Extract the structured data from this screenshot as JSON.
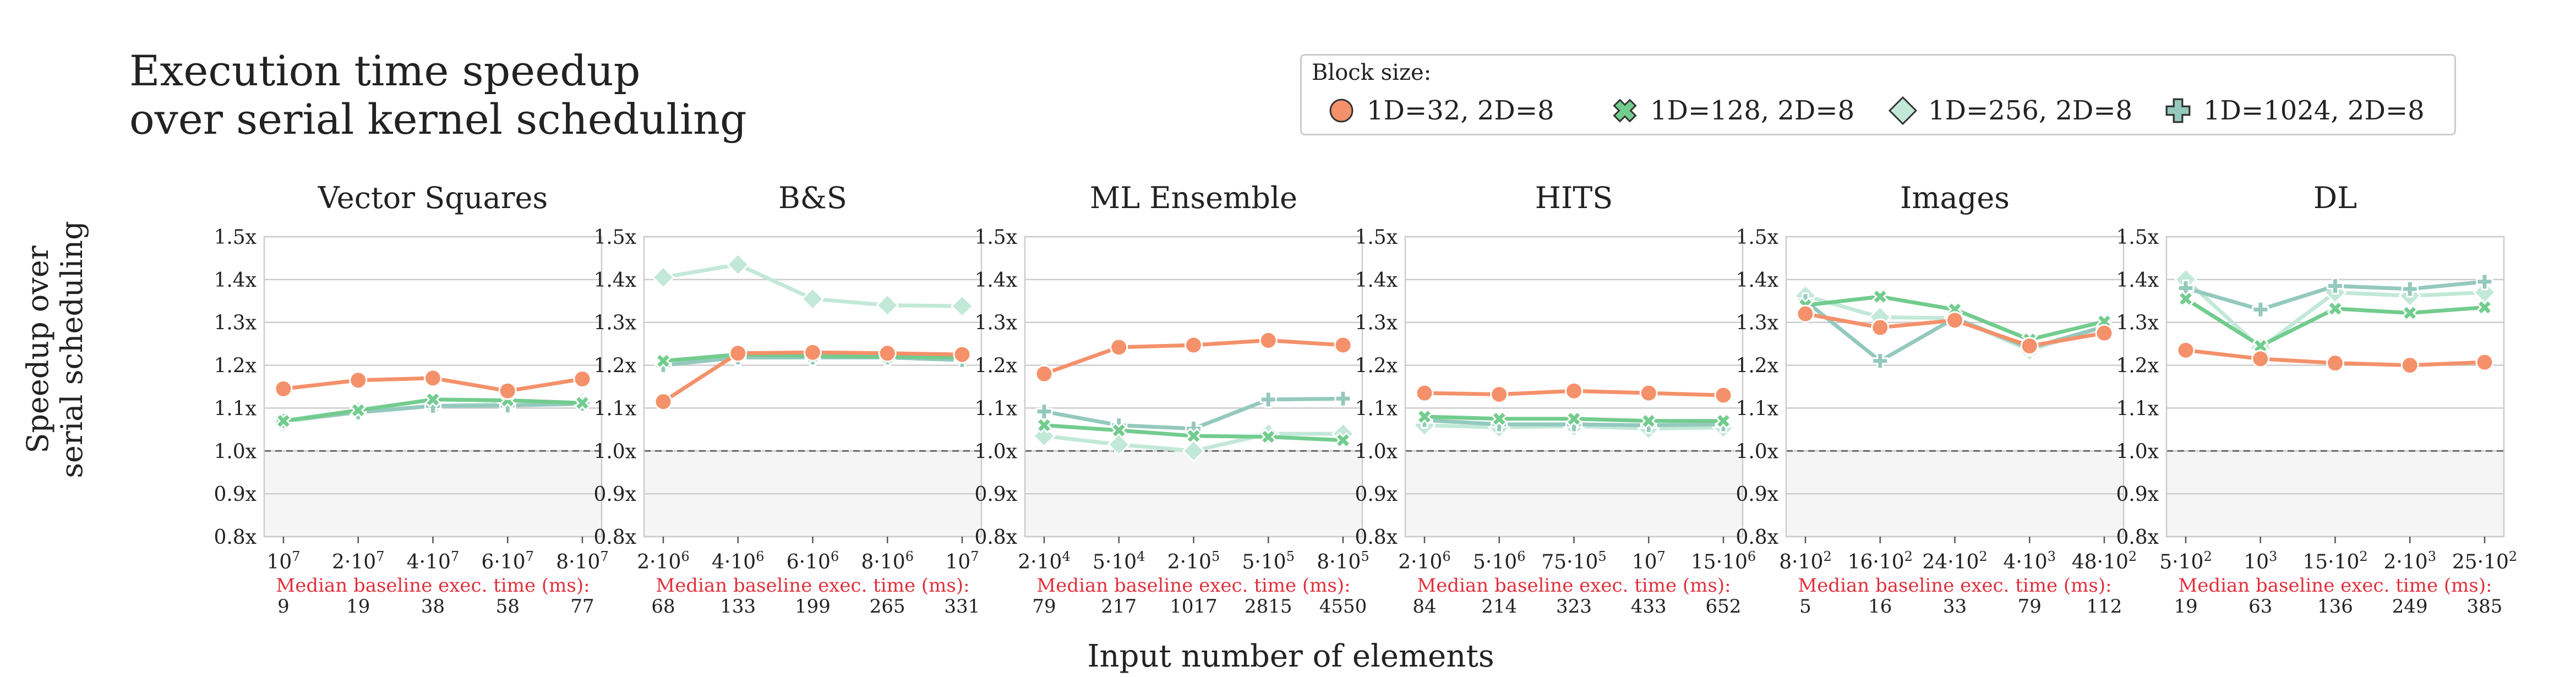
{
  "figure": {
    "title_line1": "Execution time speedup",
    "title_line2": "over serial kernel scheduling",
    "ylabel_line1": "Speedup over",
    "ylabel_line2": "serial scheduling",
    "xlabel": "Input number of elements",
    "legend_title": "Block size:",
    "baseline_label": "Median baseline exec. time (ms):"
  },
  "series": [
    {
      "name": "1D=32, 2D=8",
      "color": "#f4916a",
      "marker": "circle"
    },
    {
      "name": "1D=128, 2D=8",
      "color": "#72cc8e",
      "marker": "x"
    },
    {
      "name": "1D=256, 2D=8",
      "color": "#c2e8d8",
      "marker": "diamond"
    },
    {
      "name": "1D=1024, 2D=8",
      "color": "#94c9bd",
      "marker": "plus"
    }
  ],
  "colors": {
    "baseline_text": "#e0303c",
    "grid": "#cccccc",
    "below_one_fill": "#f5f5f5",
    "dashed_line": "#666666"
  },
  "chart_data": [
    {
      "type": "line",
      "title": "Vector Squares",
      "yticks": [
        "0.8x",
        "0.9x",
        "1.0x",
        "1.1x",
        "1.2x",
        "1.3x",
        "1.4x",
        "1.5x"
      ],
      "ylim": [
        0.8,
        1.5
      ],
      "xticks": [
        "10^7",
        "2·10^7",
        "4·10^7",
        "6·10^7",
        "8·10^7"
      ],
      "baseline_ms": [
        "9",
        "19",
        "38",
        "58",
        "77"
      ],
      "series": [
        {
          "values": [
            1.145,
            1.165,
            1.17,
            1.14,
            1.168
          ]
        },
        {
          "values": [
            1.07,
            1.095,
            1.12,
            1.118,
            1.112
          ]
        },
        {
          "values": [
            1.068,
            1.092,
            1.105,
            1.11,
            1.112
          ]
        },
        {
          "values": [
            1.07,
            1.09,
            1.105,
            1.106,
            1.11
          ]
        }
      ]
    },
    {
      "type": "line",
      "title": "B&S",
      "yticks": [
        "0.8x",
        "0.9x",
        "1.0x",
        "1.1x",
        "1.2x",
        "1.3x",
        "1.4x",
        "1.5x"
      ],
      "ylim": [
        0.8,
        1.5
      ],
      "xticks": [
        "2·10^6",
        "4·10^6",
        "6·10^6",
        "8·10^6",
        "10^7"
      ],
      "baseline_ms": [
        "68",
        "133",
        "199",
        "265",
        "331"
      ],
      "series": [
        {
          "values": [
            1.115,
            1.228,
            1.23,
            1.228,
            1.225
          ]
        },
        {
          "values": [
            1.21,
            1.225,
            1.222,
            1.22,
            1.218
          ]
        },
        {
          "values": [
            1.405,
            1.435,
            1.355,
            1.34,
            1.338
          ]
        },
        {
          "values": [
            1.2,
            1.218,
            1.218,
            1.218,
            1.212
          ]
        }
      ]
    },
    {
      "type": "line",
      "title": "ML Ensemble",
      "yticks": [
        "0.8x",
        "0.9x",
        "1.0x",
        "1.1x",
        "1.2x",
        "1.3x",
        "1.4x",
        "1.5x"
      ],
      "ylim": [
        0.8,
        1.5
      ],
      "xticks": [
        "2·10^4",
        "5·10^4",
        "2·10^5",
        "5·10^5",
        "8·10^5"
      ],
      "baseline_ms": [
        "79",
        "217",
        "1017",
        "2815",
        "4550"
      ],
      "series": [
        {
          "values": [
            1.18,
            1.242,
            1.247,
            1.258,
            1.247
          ]
        },
        {
          "values": [
            1.06,
            1.048,
            1.035,
            1.033,
            1.025
          ]
        },
        {
          "values": [
            1.035,
            1.015,
            1.0,
            1.04,
            1.04
          ]
        },
        {
          "values": [
            1.092,
            1.06,
            1.052,
            1.12,
            1.122
          ]
        }
      ]
    },
    {
      "type": "line",
      "title": "HITS",
      "yticks": [
        "0.8x",
        "0.9x",
        "1.0x",
        "1.1x",
        "1.2x",
        "1.3x",
        "1.4x",
        "1.5x"
      ],
      "ylim": [
        0.8,
        1.5
      ],
      "xticks": [
        "2·10^6",
        "5·10^6",
        "75·10^5",
        "10^7",
        "15·10^6"
      ],
      "baseline_ms": [
        "84",
        "214",
        "323",
        "433",
        "652"
      ],
      "series": [
        {
          "values": [
            1.135,
            1.132,
            1.14,
            1.135,
            1.13
          ]
        },
        {
          "values": [
            1.08,
            1.075,
            1.075,
            1.07,
            1.07
          ]
        },
        {
          "values": [
            1.06,
            1.055,
            1.058,
            1.052,
            1.055
          ]
        },
        {
          "values": [
            1.072,
            1.062,
            1.062,
            1.06,
            1.062
          ]
        }
      ]
    },
    {
      "type": "line",
      "title": "Images",
      "yticks": [
        "0.8x",
        "0.9x",
        "1.0x",
        "1.1x",
        "1.2x",
        "1.3x",
        "1.4x",
        "1.5x"
      ],
      "ylim": [
        0.8,
        1.5
      ],
      "xticks": [
        "8·10^2",
        "16·10^2",
        "24·10^2",
        "4·10^3",
        "48·10^2"
      ],
      "baseline_ms": [
        "5",
        "16",
        "33",
        "79",
        "112"
      ],
      "series": [
        {
          "values": [
            1.32,
            1.288,
            1.305,
            1.245,
            1.275
          ]
        },
        {
          "values": [
            1.34,
            1.36,
            1.33,
            1.26,
            1.302
          ]
        },
        {
          "values": [
            1.362,
            1.312,
            1.31,
            1.235,
            1.29
          ]
        },
        {
          "values": [
            1.35,
            1.21,
            1.31,
            1.24,
            1.29
          ]
        }
      ]
    },
    {
      "type": "line",
      "title": "DL",
      "yticks": [
        "0.8x",
        "0.9x",
        "1.0x",
        "1.1x",
        "1.2x",
        "1.3x",
        "1.4x",
        "1.5x"
      ],
      "ylim": [
        0.8,
        1.5
      ],
      "xticks": [
        "5·10^2",
        "10^3",
        "15·10^2",
        "2·10^3",
        "25·10^2"
      ],
      "baseline_ms": [
        "19",
        "63",
        "136",
        "249",
        "385"
      ],
      "series": [
        {
          "values": [
            1.235,
            1.215,
            1.205,
            1.2,
            1.207
          ]
        },
        {
          "values": [
            1.355,
            1.245,
            1.332,
            1.322,
            1.335
          ]
        },
        {
          "values": [
            1.4,
            1.24,
            1.37,
            1.362,
            1.37
          ]
        },
        {
          "values": [
            1.38,
            1.33,
            1.385,
            1.378,
            1.395
          ]
        }
      ]
    }
  ]
}
